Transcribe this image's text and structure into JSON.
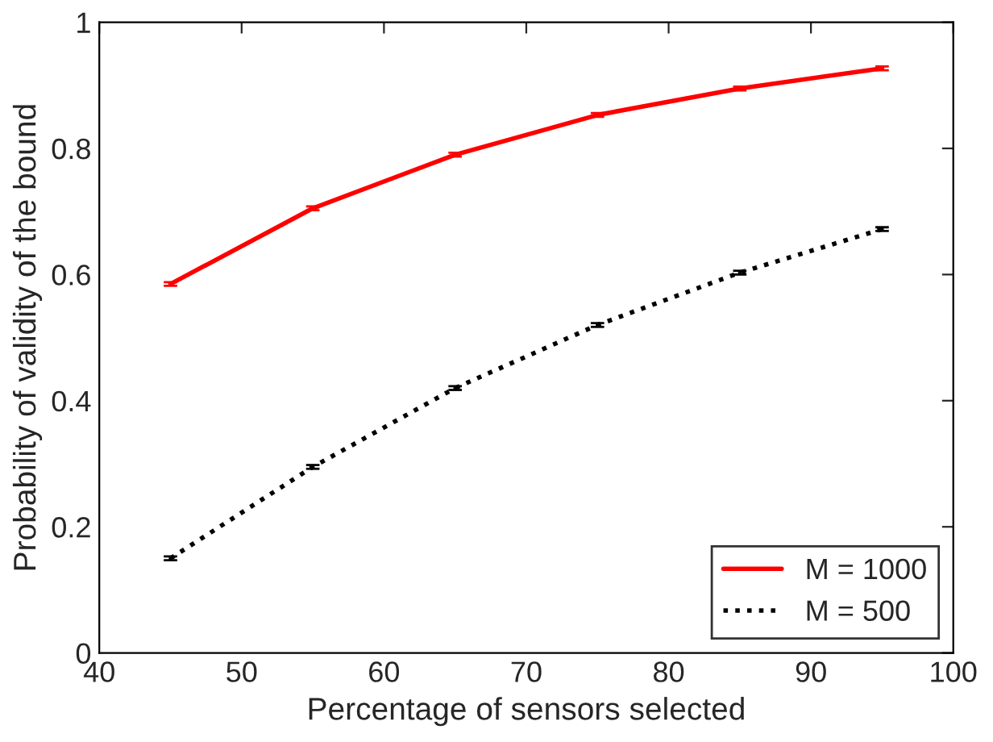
{
  "chart_data": {
    "type": "line",
    "xlabel": "Percentage of sensors selected",
    "ylabel": "Probability of validity of the bound",
    "x": [
      45,
      55,
      65,
      75,
      85,
      95
    ],
    "series": [
      {
        "name": "M = 1000",
        "color": "#ff0000",
        "line_style": "solid",
        "values": [
          0.585,
          0.705,
          0.79,
          0.853,
          0.895,
          0.927
        ],
        "errors": [
          0.003,
          0.003,
          0.003,
          0.003,
          0.003,
          0.003
        ]
      },
      {
        "name": "M = 500",
        "color": "#000000",
        "line_style": "dotted",
        "values": [
          0.15,
          0.295,
          0.42,
          0.52,
          0.603,
          0.672
        ],
        "errors": [
          0.003,
          0.003,
          0.003,
          0.003,
          0.003,
          0.003
        ]
      }
    ],
    "xlim": [
      40,
      100
    ],
    "ylim": [
      0,
      1
    ],
    "xticks": [
      40,
      50,
      60,
      70,
      80,
      90,
      100
    ],
    "yticks": [
      0,
      0.2,
      0.4,
      0.6,
      0.8,
      1
    ],
    "grid": false,
    "legend": "bottom right",
    "marker": "none"
  }
}
